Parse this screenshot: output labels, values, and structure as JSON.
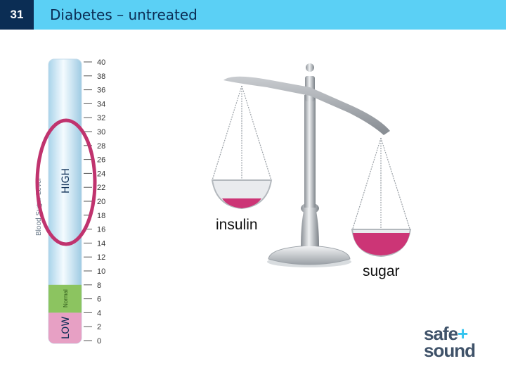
{
  "slide": {
    "number": "31",
    "title": "Diabetes – untreated"
  },
  "meter": {
    "axis_title": "Blood Sugar Level",
    "high_label": "HIGH",
    "normal_label": "Normal",
    "low_label": "LOW",
    "ticks": [
      "40",
      "38",
      "36",
      "34",
      "32",
      "30",
      "28",
      "26",
      "24",
      "22",
      "20",
      "18",
      "16",
      "14",
      "12",
      "10",
      "8",
      "6",
      "4",
      "2",
      "0"
    ],
    "range": [
      0,
      40
    ],
    "normal_range": [
      4,
      8
    ],
    "low_range": [
      0,
      4
    ]
  },
  "scale": {
    "left_pan_label": "insulin",
    "right_pan_label": "sugar"
  },
  "logo": {
    "line1": "safe",
    "plus": "+",
    "line2": "sound"
  },
  "colors": {
    "header": "#5bd0f5",
    "slide_number_bg": "#0b2d54",
    "pan_fill": "#cc3576",
    "high_oval": "#c0336e",
    "normal_zone": "#8cc460",
    "low_zone": "#e7a0c4",
    "meter_tube": "#cfe8f5"
  }
}
